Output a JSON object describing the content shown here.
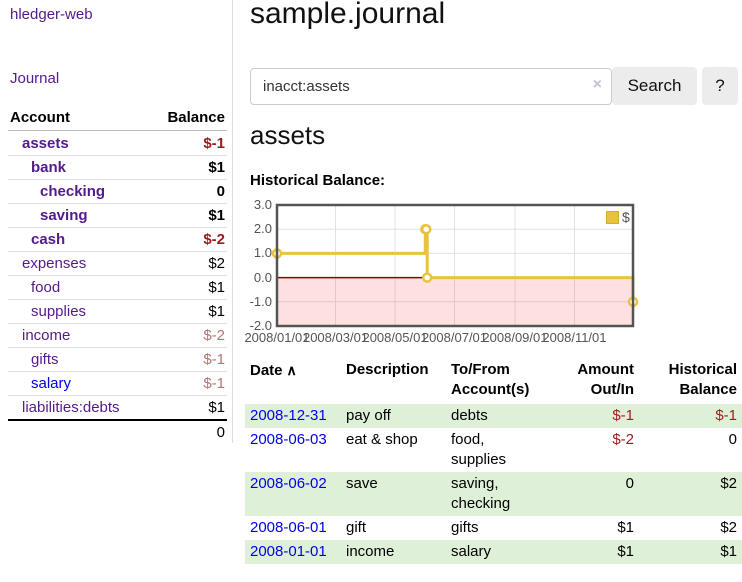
{
  "colors": {
    "link_purple": "#551a8b",
    "link_blue": "#0000ee",
    "negative": "#9e1b1b",
    "negative_light": "#bb7272",
    "row_highlight_green": "#dff0d8",
    "chart_line_gold": "#e9c23f",
    "chart_zero_line": "#8b0000",
    "chart_negative_fill": "rgba(255,0,0,0.12)",
    "chart_border": "#545454",
    "gridline": "#e2e2e2"
  },
  "sidebar": {
    "app_title": "hledger-web",
    "journal_label": "Journal",
    "accounts_table": {
      "header_account": "Account",
      "header_balance": "Balance",
      "rows": [
        {
          "label": "assets",
          "depth": 1,
          "strong": true,
          "label_color": "#551a8b",
          "balance": "$-1",
          "balance_color": "#9e1b1b",
          "balance_strong": true
        },
        {
          "label": "bank",
          "depth": 2,
          "strong": true,
          "label_color": "#551a8b",
          "balance": "$1",
          "balance_color": "#000000",
          "balance_strong": true
        },
        {
          "label": "checking",
          "depth": 3,
          "strong": true,
          "label_color": "#551a8b",
          "balance": "0",
          "balance_color": "#000000",
          "balance_strong": true
        },
        {
          "label": "saving",
          "depth": 3,
          "strong": true,
          "label_color": "#551a8b",
          "balance": "$1",
          "balance_color": "#000000",
          "balance_strong": true
        },
        {
          "label": "cash",
          "depth": 2,
          "strong": true,
          "label_color": "#551a8b",
          "balance": "$-2",
          "balance_color": "#9e1b1b",
          "balance_strong": true
        },
        {
          "label": "expenses",
          "depth": 1,
          "strong": false,
          "label_color": "#551a8b",
          "balance": "$2",
          "balance_color": "#000000",
          "balance_strong": false
        },
        {
          "label": "food",
          "depth": 2,
          "strong": false,
          "label_color": "#551a8b",
          "balance": "$1",
          "balance_color": "#000000",
          "balance_strong": false
        },
        {
          "label": "supplies",
          "depth": 2,
          "strong": false,
          "label_color": "#551a8b",
          "balance": "$1",
          "balance_color": "#000000",
          "balance_strong": false
        },
        {
          "label": "income",
          "depth": 1,
          "strong": false,
          "label_color": "#551a8b",
          "balance": "$-2",
          "balance_color": "#bb7272",
          "balance_strong": false
        },
        {
          "label": "gifts",
          "depth": 2,
          "strong": false,
          "label_color": "#551a8b",
          "balance": "$-1",
          "balance_color": "#bb7272",
          "balance_strong": false
        },
        {
          "label": "salary",
          "depth": 2,
          "strong": false,
          "label_color": "#0000ee",
          "balance": "$-1",
          "balance_color": "#bb7272",
          "balance_strong": false
        },
        {
          "label": "liabilities:debts",
          "depth": 1,
          "strong": false,
          "label_color": "#551a8b",
          "balance": "$1",
          "balance_color": "#000000",
          "balance_strong": false
        }
      ],
      "total": "0"
    }
  },
  "main": {
    "title": "sample.journal",
    "search": {
      "query": "inacct:assets",
      "clear_icon": "×",
      "button_label": "Search",
      "help_label": "?"
    },
    "account_heading": "assets",
    "chart_label": "Historical Balance:"
  },
  "chart_data": {
    "type": "line",
    "step": true,
    "title": "Historical Balance:",
    "series": [
      {
        "name": "$",
        "color": "#e9c23f",
        "points": [
          [
            "2008-01-01",
            1
          ],
          [
            "2008-06-01",
            2
          ],
          [
            "2008-06-02",
            2
          ],
          [
            "2008-06-03",
            0
          ],
          [
            "2008-12-31",
            -1
          ]
        ]
      }
    ],
    "xlim": [
      "2008-01-01",
      "2008-12-31"
    ],
    "ylim": [
      -2,
      3
    ],
    "x_ticks": [
      {
        "date": "2008-01-01",
        "label": "2008/01/01"
      },
      {
        "date": "2008-03-01",
        "label": "2008/03/01"
      },
      {
        "date": "2008-05-01",
        "label": "2008/05/01"
      },
      {
        "date": "2008-07-01",
        "label": "2008/07/01"
      },
      {
        "date": "2008-09-01",
        "label": "2008/09/01"
      },
      {
        "date": "2008-11-01",
        "label": "2008/11/01"
      }
    ],
    "y_ticks": [
      {
        "v": 3,
        "label": "3.0"
      },
      {
        "v": 2,
        "label": "2.0"
      },
      {
        "v": 1,
        "label": "1.0"
      },
      {
        "v": 0,
        "label": "0.0"
      },
      {
        "v": -1,
        "label": "-1.0"
      },
      {
        "v": -2,
        "label": "-2.0"
      }
    ],
    "grid": true,
    "legend": {
      "label": "$",
      "position": "top-right"
    },
    "negative_region_shaded": true
  },
  "register_table": {
    "headers": [
      "Date",
      "Description",
      "To/From Account(s)",
      "Amount Out/In",
      "Historical Balance"
    ],
    "sort_icon": "∧",
    "rows": [
      {
        "date": "2008-12-31",
        "description": "pay off",
        "accounts": "debts",
        "amount": "$-1",
        "amount_neg": true,
        "balance": "$-1",
        "balance_neg": true,
        "highlight": true
      },
      {
        "date": "2008-06-03",
        "description": "eat & shop",
        "accounts": "food, supplies",
        "amount": "$-2",
        "amount_neg": true,
        "balance": "0",
        "balance_neg": false,
        "highlight": false
      },
      {
        "date": "2008-06-02",
        "description": "save",
        "accounts": "saving, checking",
        "amount": "0",
        "amount_neg": false,
        "balance": "$2",
        "balance_neg": false,
        "highlight": true
      },
      {
        "date": "2008-06-01",
        "description": "gift",
        "accounts": "gifts",
        "amount": "$1",
        "amount_neg": false,
        "balance": "$2",
        "balance_neg": false,
        "highlight": false
      },
      {
        "date": "2008-01-01",
        "description": "income",
        "accounts": "salary",
        "amount": "$1",
        "amount_neg": false,
        "balance": "$1",
        "balance_neg": false,
        "highlight": true
      }
    ]
  }
}
